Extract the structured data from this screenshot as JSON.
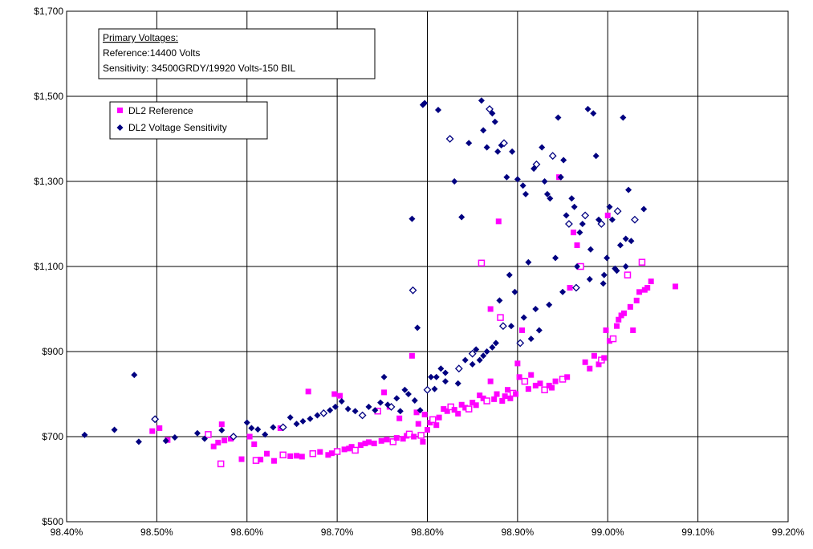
{
  "chart_data": {
    "type": "scatter",
    "x_axis": {
      "min": 98.4,
      "max": 99.2,
      "ticks": [
        98.4,
        98.5,
        98.6,
        98.7,
        98.8,
        98.9,
        99.0,
        99.1,
        99.2
      ],
      "tick_labels": [
        "98.40%",
        "98.50%",
        "98.60%",
        "98.70%",
        "98.80%",
        "98.90%",
        "99.00%",
        "99.10%",
        "99.20%"
      ]
    },
    "y_axis": {
      "min": 500,
      "max": 1700,
      "ticks": [
        500,
        700,
        900,
        1100,
        1300,
        1500,
        1700
      ],
      "tick_labels": [
        "$500",
        "$700",
        "$900",
        "$1,100",
        "$1,300",
        "$1,500",
        "$1,700"
      ]
    },
    "grid": true,
    "legend_position": "top-left",
    "annotation": {
      "title": "Primary Voltages:",
      "lines": [
        "Reference:14400 Volts",
        "Sensitivity: 34500GRDY/19920 Volts-150 BIL"
      ]
    },
    "series": [
      {
        "name": "DL2 Reference",
        "marker": "square",
        "color": "#FF00FF",
        "points": [
          [
            98.495,
            713
          ],
          [
            98.503,
            720
          ],
          [
            98.512,
            692
          ],
          [
            98.557,
            705
          ],
          [
            98.563,
            677
          ],
          [
            98.568,
            686
          ],
          [
            98.572,
            729
          ],
          [
            98.575,
            691
          ],
          [
            98.571,
            636
          ],
          [
            98.582,
            695
          ],
          [
            98.594,
            647
          ],
          [
            98.603,
            700
          ],
          [
            98.608,
            682
          ],
          [
            98.61,
            644
          ],
          [
            98.615,
            646
          ],
          [
            98.622,
            660
          ],
          [
            98.63,
            643
          ],
          [
            98.637,
            720
          ],
          [
            98.64,
            657
          ],
          [
            98.648,
            654
          ],
          [
            98.655,
            655
          ],
          [
            98.661,
            653
          ],
          [
            98.668,
            806
          ],
          [
            98.673,
            660
          ],
          [
            98.681,
            664
          ],
          [
            98.69,
            657
          ],
          [
            98.694,
            661
          ],
          [
            98.697,
            800
          ],
          [
            98.7,
            665
          ],
          [
            98.703,
            796
          ],
          [
            98.708,
            670
          ],
          [
            98.713,
            672
          ],
          [
            98.716,
            676
          ],
          [
            98.72,
            668
          ],
          [
            98.726,
            680
          ],
          [
            98.731,
            684
          ],
          [
            98.735,
            687
          ],
          [
            98.741,
            684
          ],
          [
            98.745,
            760
          ],
          [
            98.749,
            690
          ],
          [
            98.752,
            804
          ],
          [
            98.755,
            693
          ],
          [
            98.758,
            770
          ],
          [
            98.762,
            688
          ],
          [
            98.766,
            697
          ],
          [
            98.769,
            743
          ],
          [
            98.773,
            695
          ],
          [
            98.777,
            702
          ],
          [
            98.78,
            706
          ],
          [
            98.783,
            890
          ],
          [
            98.785,
            700
          ],
          [
            98.788,
            757
          ],
          [
            98.79,
            730
          ],
          [
            98.793,
            703
          ],
          [
            98.795,
            688
          ],
          [
            98.797,
            752
          ],
          [
            98.8,
            716
          ],
          [
            98.803,
            733
          ],
          [
            98.806,
            740
          ],
          [
            98.81,
            727
          ],
          [
            98.813,
            745
          ],
          [
            98.818,
            765
          ],
          [
            98.822,
            760
          ],
          [
            98.826,
            770
          ],
          [
            98.83,
            763
          ],
          [
            98.834,
            754
          ],
          [
            98.838,
            775
          ],
          [
            98.842,
            768
          ],
          [
            98.846,
            765
          ],
          [
            98.85,
            780
          ],
          [
            98.854,
            774
          ],
          [
            98.858,
            797
          ],
          [
            98.862,
            790
          ],
          [
            98.866,
            784
          ],
          [
            98.87,
            830
          ],
          [
            98.874,
            788
          ],
          [
            98.877,
            800
          ],
          [
            98.879,
            1206
          ],
          [
            98.881,
            980
          ],
          [
            98.883,
            784
          ],
          [
            98.886,
            795
          ],
          [
            98.889,
            810
          ],
          [
            98.892,
            790
          ],
          [
            98.895,
            802
          ],
          [
            98.898,
            800
          ],
          [
            98.9,
            872
          ],
          [
            98.902,
            840
          ],
          [
            98.905,
            950
          ],
          [
            98.908,
            830
          ],
          [
            98.912,
            812
          ],
          [
            98.915,
            845
          ],
          [
            98.92,
            820
          ],
          [
            98.925,
            825
          ],
          [
            98.93,
            810
          ],
          [
            98.935,
            820
          ],
          [
            98.938,
            815
          ],
          [
            98.942,
            830
          ],
          [
            98.946,
            1310
          ],
          [
            98.95,
            835
          ],
          [
            98.955,
            840
          ],
          [
            98.958,
            1050
          ],
          [
            98.962,
            1180
          ],
          [
            98.966,
            1150
          ],
          [
            98.97,
            1100
          ],
          [
            98.975,
            875
          ],
          [
            98.98,
            860
          ],
          [
            98.985,
            890
          ],
          [
            98.99,
            870
          ],
          [
            98.993,
            880
          ],
          [
            98.996,
            885
          ],
          [
            98.998,
            950
          ],
          [
            99.0,
            1220
          ],
          [
            99.002,
            925
          ],
          [
            99.006,
            930
          ],
          [
            99.01,
            960
          ],
          [
            99.012,
            975
          ],
          [
            99.015,
            985
          ],
          [
            99.018,
            990
          ],
          [
            99.022,
            1080
          ],
          [
            99.025,
            1005
          ],
          [
            99.028,
            950
          ],
          [
            99.032,
            1020
          ],
          [
            99.035,
            1040
          ],
          [
            99.038,
            1110
          ],
          [
            99.041,
            1045
          ],
          [
            99.044,
            1050
          ],
          [
            99.048,
            1065
          ],
          [
            99.075,
            1053
          ],
          [
            98.86,
            1108
          ],
          [
            98.87,
            1000
          ]
        ]
      },
      {
        "name": "DL2 Voltage Sensitivity",
        "marker": "diamond",
        "color": "#000080",
        "points": [
          [
            98.42,
            704
          ],
          [
            98.453,
            716
          ],
          [
            98.475,
            845
          ],
          [
            98.48,
            688
          ],
          [
            98.498,
            741
          ],
          [
            98.51,
            690
          ],
          [
            98.52,
            698
          ],
          [
            98.545,
            708
          ],
          [
            98.553,
            695
          ],
          [
            98.572,
            715
          ],
          [
            98.585,
            700
          ],
          [
            98.6,
            733
          ],
          [
            98.605,
            720
          ],
          [
            98.612,
            717
          ],
          [
            98.62,
            705
          ],
          [
            98.629,
            722
          ],
          [
            98.64,
            722
          ],
          [
            98.648,
            745
          ],
          [
            98.655,
            730
          ],
          [
            98.662,
            736
          ],
          [
            98.67,
            742
          ],
          [
            98.678,
            750
          ],
          [
            98.685,
            755
          ],
          [
            98.692,
            762
          ],
          [
            98.698,
            770
          ],
          [
            98.705,
            783
          ],
          [
            98.712,
            765
          ],
          [
            98.72,
            760
          ],
          [
            98.728,
            750
          ],
          [
            98.735,
            770
          ],
          [
            98.742,
            762
          ],
          [
            98.748,
            780
          ],
          [
            98.752,
            840
          ],
          [
            98.756,
            775
          ],
          [
            98.76,
            770
          ],
          [
            98.766,
            790
          ],
          [
            98.77,
            760
          ],
          [
            98.775,
            810
          ],
          [
            98.779,
            800
          ],
          [
            98.783,
            1212
          ],
          [
            98.784,
            1044
          ],
          [
            98.786,
            785
          ],
          [
            98.789,
            956
          ],
          [
            98.792,
            762
          ],
          [
            98.795,
            1480
          ],
          [
            98.797,
            1484
          ],
          [
            98.8,
            810
          ],
          [
            98.804,
            840
          ],
          [
            98.808,
            812
          ],
          [
            98.812,
            1468
          ],
          [
            98.815,
            860
          ],
          [
            98.82,
            830
          ],
          [
            98.825,
            1400
          ],
          [
            98.83,
            1300
          ],
          [
            98.834,
            825
          ],
          [
            98.838,
            1216
          ],
          [
            98.842,
            880
          ],
          [
            98.846,
            1390
          ],
          [
            98.85,
            895
          ],
          [
            98.854,
            905
          ],
          [
            98.858,
            880
          ],
          [
            98.86,
            1490
          ],
          [
            98.862,
            1420
          ],
          [
            98.866,
            1380
          ],
          [
            98.869,
            1470
          ],
          [
            98.872,
            1460
          ],
          [
            98.875,
            1440
          ],
          [
            98.878,
            1370
          ],
          [
            98.88,
            1020
          ],
          [
            98.882,
            1385
          ],
          [
            98.885,
            1390
          ],
          [
            98.888,
            1310
          ],
          [
            98.891,
            1080
          ],
          [
            98.894,
            1370
          ],
          [
            98.897,
            1040
          ],
          [
            98.9,
            1305
          ],
          [
            98.903,
            920
          ],
          [
            98.906,
            1290
          ],
          [
            98.909,
            1270
          ],
          [
            98.912,
            1110
          ],
          [
            98.915,
            930
          ],
          [
            98.918,
            1330
          ],
          [
            98.921,
            1340
          ],
          [
            98.924,
            950
          ],
          [
            98.927,
            1380
          ],
          [
            98.93,
            1300
          ],
          [
            98.933,
            1270
          ],
          [
            98.936,
            1260
          ],
          [
            98.939,
            1360
          ],
          [
            98.942,
            1120
          ],
          [
            98.945,
            1450
          ],
          [
            98.948,
            1310
          ],
          [
            98.951,
            1350
          ],
          [
            98.954,
            1220
          ],
          [
            98.957,
            1200
          ],
          [
            98.96,
            1260
          ],
          [
            98.963,
            1240
          ],
          [
            98.966,
            1100
          ],
          [
            98.969,
            1180
          ],
          [
            98.972,
            1200
          ],
          [
            98.975,
            1220
          ],
          [
            98.978,
            1470
          ],
          [
            98.981,
            1140
          ],
          [
            98.984,
            1460
          ],
          [
            98.987,
            1360
          ],
          [
            98.99,
            1210
          ],
          [
            98.993,
            1200
          ],
          [
            98.996,
            1080
          ],
          [
            98.999,
            1120
          ],
          [
            99.002,
            1240
          ],
          [
            99.005,
            1210
          ],
          [
            99.008,
            1095
          ],
          [
            99.011,
            1230
          ],
          [
            99.014,
            1150
          ],
          [
            99.017,
            1450
          ],
          [
            99.02,
            1165
          ],
          [
            99.023,
            1280
          ],
          [
            99.026,
            1160
          ],
          [
            99.03,
            1210
          ],
          [
            99.04,
            1235
          ],
          [
            98.872,
            910
          ],
          [
            98.866,
            900
          ],
          [
            98.862,
            890
          ],
          [
            98.876,
            920
          ],
          [
            98.884,
            960
          ],
          [
            98.893,
            960
          ],
          [
            98.907,
            980
          ],
          [
            98.92,
            1000
          ],
          [
            98.935,
            1010
          ],
          [
            98.95,
            1040
          ],
          [
            98.965,
            1050
          ],
          [
            98.98,
            1070
          ],
          [
            98.995,
            1060
          ],
          [
            99.01,
            1090
          ],
          [
            99.02,
            1100
          ],
          [
            98.85,
            870
          ],
          [
            98.835,
            860
          ],
          [
            98.82,
            850
          ],
          [
            98.81,
            840
          ]
        ]
      }
    ]
  }
}
